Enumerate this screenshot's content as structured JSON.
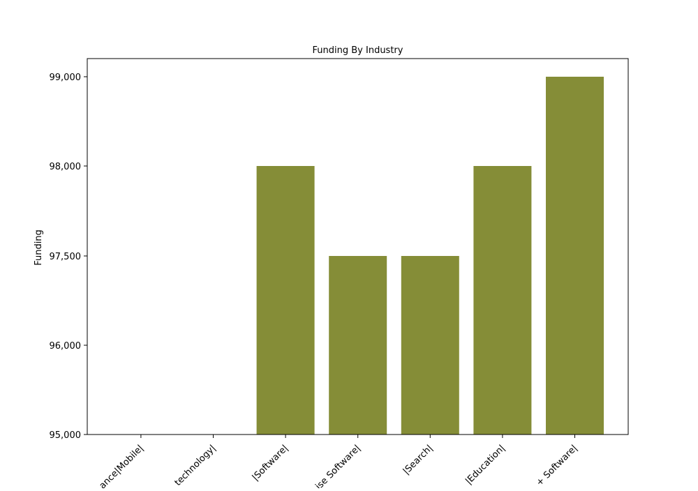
{
  "chart_data": {
    "type": "bar",
    "title": "Funding By Industry",
    "xlabel": "",
    "ylabel": "Funding",
    "categories": [
      "|E-Commerce|Mobile|",
      "|Biotechnology|",
      "|Software|",
      "|Enterprise Software|",
      "|Search|",
      "|Education|",
      "|Hardware + Software|"
    ],
    "category_label_visible": [
      "ance|Mobile|",
      "technology|",
      "|Software|",
      "ise Software|",
      "|Search|",
      "|Education|",
      "+ Software|"
    ],
    "values": [
      95000,
      95000,
      98000,
      97500,
      97500,
      98000,
      99000
    ],
    "ytick_values": [
      95000,
      96000,
      97500,
      98000,
      99000
    ],
    "ytick_labels": [
      "95,000",
      "96,000",
      "97,500",
      "98,000",
      "99,000"
    ],
    "ylim": [
      95000,
      99000
    ],
    "y_scale": "piecewise (categorical tick spacing)",
    "bar_color": "#858d37",
    "grid": false,
    "legend": "none"
  }
}
